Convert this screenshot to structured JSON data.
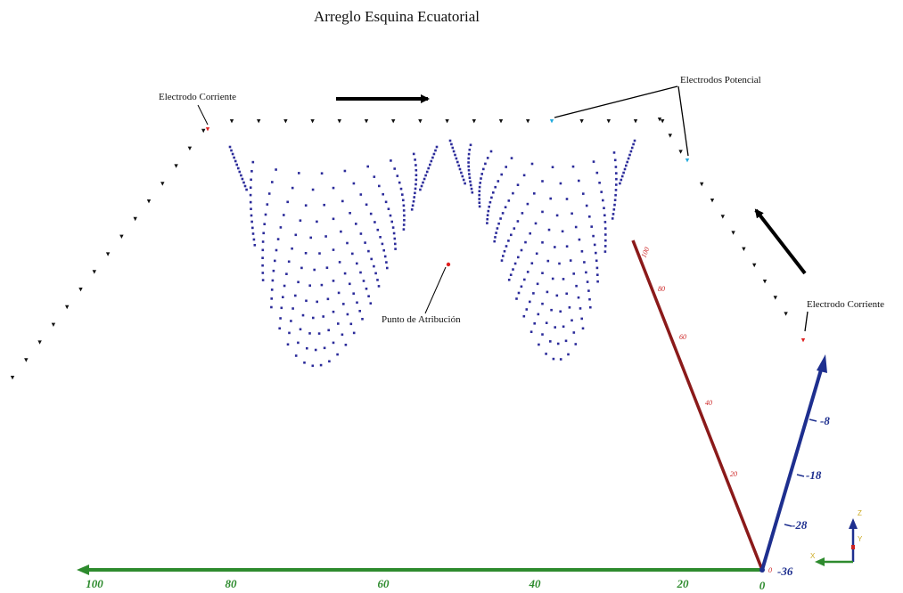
{
  "title": "Arreglo Esquina Ecuatorial",
  "annotations": {
    "current_left": "Electrodo Corriente",
    "potential": "Electrodos Potencial",
    "current_right": "Electrodo Corriente",
    "attribution": "Punto de Atribución"
  },
  "axes": {
    "x_ticks": [
      "100",
      "80",
      "60",
      "40",
      "20",
      "0"
    ],
    "y_ticks": [
      "-8",
      "-18",
      "-28",
      "-36"
    ],
    "z_ticks": [
      "100",
      "80",
      "60",
      "40",
      "20",
      "0"
    ]
  },
  "orientation": {
    "z": "Z",
    "y": "Y",
    "x": "X"
  },
  "colors": {
    "electrode": "#111111",
    "current_electrode": "#e02020",
    "potential_electrode": "#22aadd",
    "data_point": "#2b2b9a",
    "attribution_point": "#e02020",
    "x_axis": "#2e8b2e",
    "y_axis": "#1e2f8f",
    "z_axis": "#8b1a1a"
  }
}
